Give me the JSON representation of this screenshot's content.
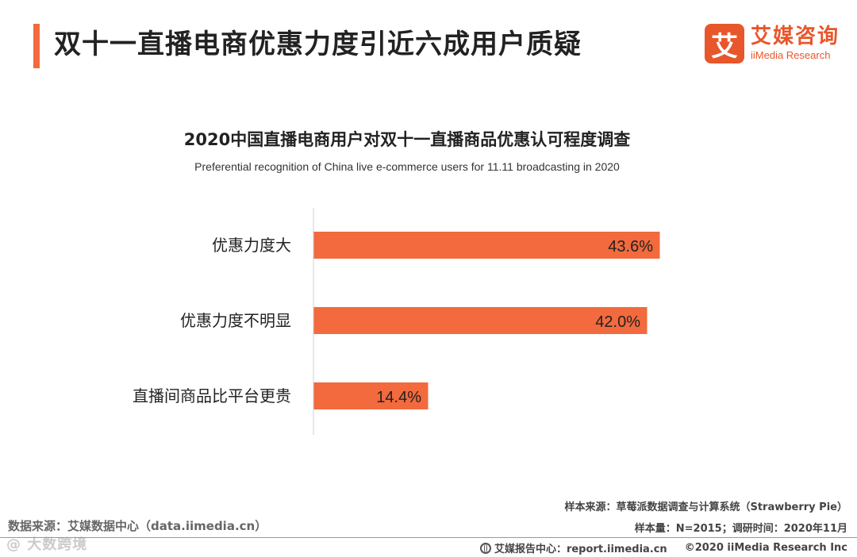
{
  "header": {
    "title": "双十一直播电商优惠力度引近六成用户质疑",
    "accent_color": "#f26a3d"
  },
  "brand": {
    "mark": "艾",
    "name": "艾媒咨询",
    "name_en": "iiMedia Research",
    "color": "#e8562b"
  },
  "chart_data": {
    "type": "bar",
    "orientation": "horizontal",
    "title": "2020中国直播电商用户对双十一直播商品优惠认可程度调查",
    "subtitle": "Preferential recognition of China live e-commerce users for 11.11 broadcasting in 2020",
    "categories": [
      "优惠力度大",
      "优惠力度不明显",
      "直播间商品比平台更贵"
    ],
    "values": [
      43.6,
      42.0,
      14.4
    ],
    "value_labels": [
      "43.6%",
      "42.0%",
      "14.4%"
    ],
    "unit": "%",
    "xlim": [
      0,
      50
    ],
    "bar_color": "#f26a3d",
    "grid": false,
    "legend": "none"
  },
  "footer": {
    "data_source": "数据来源：艾媒数据中心（data.iimedia.cn）",
    "sample_source": "样本来源：草莓派数据调查与计算系统（Strawberry Pie）",
    "sample_info": "样本量：N=2015；调研时间：2020年11月",
    "report_center": "艾媒报告中心：report.iimedia.cn",
    "copyright": "©2020  iiMedia Research  Inc",
    "watermark": "@ 大数跨境"
  }
}
